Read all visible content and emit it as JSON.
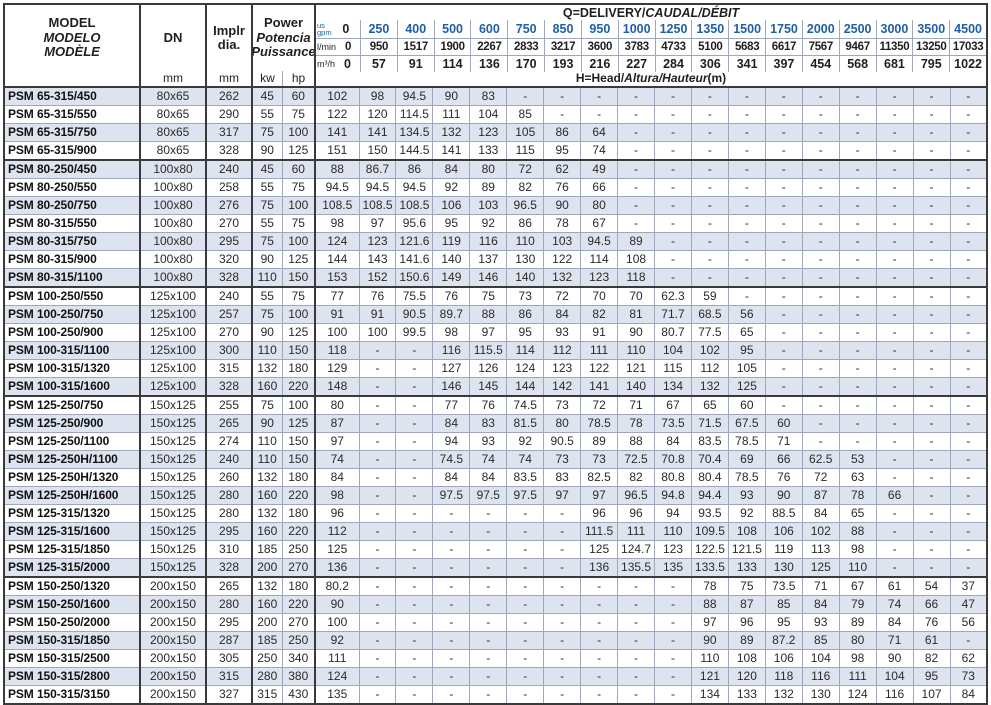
{
  "header": {
    "model_title": [
      "MODEL",
      "MODELO",
      "MODÈLE"
    ],
    "dn_label": "DN",
    "dn_unit": "mm",
    "impeller_label": [
      "Implr",
      "dia."
    ],
    "impeller_unit": "mm",
    "power_title": [
      "Power",
      "Potencia",
      "Puissance"
    ],
    "power_units": [
      "kw",
      "hp"
    ],
    "q_title_parts": [
      "Q=DELIVERY/",
      "CAUDAL/DÉBIT"
    ],
    "h_title_parts": [
      "H=Head/",
      "Altura/Hauteur",
      "(m)"
    ],
    "flow_unit_labels": {
      "gpm": [
        "us",
        "gpm"
      ],
      "lmin": "l/min",
      "m3h": "m³/h"
    },
    "gpm": [
      "0",
      "250",
      "400",
      "500",
      "600",
      "750",
      "850",
      "950",
      "1000",
      "1250",
      "1350",
      "1500",
      "1750",
      "2000",
      "2500",
      "3000",
      "3500",
      "4500"
    ],
    "lmin": [
      "0",
      "950",
      "1517",
      "1900",
      "2267",
      "2833",
      "3217",
      "3600",
      "3783",
      "4733",
      "5100",
      "5683",
      "6617",
      "7567",
      "9467",
      "11350",
      "13250",
      "17033"
    ],
    "m3h": [
      "0",
      "57",
      "91",
      "114",
      "136",
      "170",
      "193",
      "216",
      "227",
      "284",
      "306",
      "341",
      "397",
      "454",
      "568",
      "681",
      "795",
      "1022"
    ]
  },
  "colors": {
    "accent_blue": "#1e5fa8",
    "row_shade": "#dee4ef",
    "grid_light": "#9fa8ba",
    "grid_dark": "#3a3a3a"
  },
  "rows": [
    {
      "model": "PSM 65-315/450",
      "dn": "80x65",
      "dia": "262",
      "kw": "45",
      "hp": "60",
      "group_end": false,
      "head": [
        "102",
        "98",
        "94.5",
        "90",
        "83",
        "-",
        "-",
        "-",
        "-",
        "-",
        "-",
        "-",
        "-",
        "-",
        "-",
        "-",
        "-",
        "-"
      ]
    },
    {
      "model": "PSM 65-315/550",
      "dn": "80x65",
      "dia": "290",
      "kw": "55",
      "hp": "75",
      "group_end": false,
      "head": [
        "122",
        "120",
        "114.5",
        "111",
        "104",
        "85",
        "-",
        "-",
        "-",
        "-",
        "-",
        "-",
        "-",
        "-",
        "-",
        "-",
        "-",
        "-"
      ]
    },
    {
      "model": "PSM 65-315/750",
      "dn": "80x65",
      "dia": "317",
      "kw": "75",
      "hp": "100",
      "group_end": false,
      "head": [
        "141",
        "141",
        "134.5",
        "132",
        "123",
        "105",
        "86",
        "64",
        "-",
        "-",
        "-",
        "-",
        "-",
        "-",
        "-",
        "-",
        "-",
        "-"
      ]
    },
    {
      "model": "PSM 65-315/900",
      "dn": "80x65",
      "dia": "328",
      "kw": "90",
      "hp": "125",
      "group_end": true,
      "head": [
        "151",
        "150",
        "144.5",
        "141",
        "133",
        "115",
        "95",
        "74",
        "-",
        "-",
        "-",
        "-",
        "-",
        "-",
        "-",
        "-",
        "-",
        "-"
      ]
    },
    {
      "model": "PSM 80-250/450",
      "dn": "100x80",
      "dia": "240",
      "kw": "45",
      "hp": "60",
      "group_end": false,
      "head": [
        "88",
        "86.7",
        "86",
        "84",
        "80",
        "72",
        "62",
        "49",
        "-",
        "-",
        "-",
        "-",
        "-",
        "-",
        "-",
        "-",
        "-",
        "-"
      ]
    },
    {
      "model": "PSM 80-250/550",
      "dn": "100x80",
      "dia": "258",
      "kw": "55",
      "hp": "75",
      "group_end": false,
      "head": [
        "94.5",
        "94.5",
        "94.5",
        "92",
        "89",
        "82",
        "76",
        "66",
        "-",
        "-",
        "-",
        "-",
        "-",
        "-",
        "-",
        "-",
        "-",
        "-"
      ]
    },
    {
      "model": "PSM 80-250/750",
      "dn": "100x80",
      "dia": "276",
      "kw": "75",
      "hp": "100",
      "group_end": false,
      "head": [
        "108.5",
        "108.5",
        "108.5",
        "106",
        "103",
        "96.5",
        "90",
        "80",
        "-",
        "-",
        "-",
        "-",
        "-",
        "-",
        "-",
        "-",
        "-",
        "-"
      ]
    },
    {
      "model": "PSM 80-315/550",
      "dn": "100x80",
      "dia": "270",
      "kw": "55",
      "hp": "75",
      "group_end": false,
      "head": [
        "98",
        "97",
        "95.6",
        "95",
        "92",
        "86",
        "78",
        "67",
        "-",
        "-",
        "-",
        "-",
        "-",
        "-",
        "-",
        "-",
        "-",
        "-"
      ]
    },
    {
      "model": "PSM 80-315/750",
      "dn": "100x80",
      "dia": "295",
      "kw": "75",
      "hp": "100",
      "group_end": false,
      "head": [
        "124",
        "123",
        "121.6",
        "119",
        "116",
        "110",
        "103",
        "94.5",
        "89",
        "-",
        "-",
        "-",
        "-",
        "-",
        "-",
        "-",
        "-",
        "-"
      ]
    },
    {
      "model": "PSM 80-315/900",
      "dn": "100x80",
      "dia": "320",
      "kw": "90",
      "hp": "125",
      "group_end": false,
      "head": [
        "144",
        "143",
        "141.6",
        "140",
        "137",
        "130",
        "122",
        "114",
        "108",
        "-",
        "-",
        "-",
        "-",
        "-",
        "-",
        "-",
        "-",
        "-"
      ]
    },
    {
      "model": "PSM 80-315/1100",
      "dn": "100x80",
      "dia": "328",
      "kw": "110",
      "hp": "150",
      "group_end": true,
      "head": [
        "153",
        "152",
        "150.6",
        "149",
        "146",
        "140",
        "132",
        "123",
        "118",
        "-",
        "-",
        "-",
        "-",
        "-",
        "-",
        "-",
        "-",
        "-"
      ]
    },
    {
      "model": "PSM 100-250/550",
      "dn": "125x100",
      "dia": "240",
      "kw": "55",
      "hp": "75",
      "group_end": false,
      "head": [
        "77",
        "76",
        "75.5",
        "76",
        "75",
        "73",
        "72",
        "70",
        "70",
        "62.3",
        "59",
        "-",
        "-",
        "-",
        "-",
        "-",
        "-",
        "-"
      ]
    },
    {
      "model": "PSM 100-250/750",
      "dn": "125x100",
      "dia": "257",
      "kw": "75",
      "hp": "100",
      "group_end": false,
      "head": [
        "91",
        "91",
        "90.5",
        "89.7",
        "88",
        "86",
        "84",
        "82",
        "81",
        "71.7",
        "68.5",
        "56",
        "-",
        "-",
        "-",
        "-",
        "-",
        "-"
      ]
    },
    {
      "model": "PSM 100-250/900",
      "dn": "125x100",
      "dia": "270",
      "kw": "90",
      "hp": "125",
      "group_end": false,
      "head": [
        "100",
        "100",
        "99.5",
        "98",
        "97",
        "95",
        "93",
        "91",
        "90",
        "80.7",
        "77.5",
        "65",
        "-",
        "-",
        "-",
        "-",
        "-",
        "-"
      ]
    },
    {
      "model": "PSM 100-315/1100",
      "dn": "125x100",
      "dia": "300",
      "kw": "110",
      "hp": "150",
      "group_end": false,
      "head": [
        "118",
        "-",
        "-",
        "116",
        "115.5",
        "114",
        "112",
        "111",
        "110",
        "104",
        "102",
        "95",
        "-",
        "-",
        "-",
        "-",
        "-",
        "-"
      ]
    },
    {
      "model": "PSM 100-315/1320",
      "dn": "125x100",
      "dia": "315",
      "kw": "132",
      "hp": "180",
      "group_end": false,
      "head": [
        "129",
        "-",
        "-",
        "127",
        "126",
        "124",
        "123",
        "122",
        "121",
        "115",
        "112",
        "105",
        "-",
        "-",
        "-",
        "-",
        "-",
        "-"
      ]
    },
    {
      "model": "PSM 100-315/1600",
      "dn": "125x100",
      "dia": "328",
      "kw": "160",
      "hp": "220",
      "group_end": true,
      "head": [
        "148",
        "-",
        "-",
        "146",
        "145",
        "144",
        "142",
        "141",
        "140",
        "134",
        "132",
        "125",
        "-",
        "-",
        "-",
        "-",
        "-",
        "-"
      ]
    },
    {
      "model": "PSM 125-250/750",
      "dn": "150x125",
      "dia": "255",
      "kw": "75",
      "hp": "100",
      "group_end": false,
      "head": [
        "80",
        "-",
        "-",
        "77",
        "76",
        "74.5",
        "73",
        "72",
        "71",
        "67",
        "65",
        "60",
        "-",
        "-",
        "-",
        "-",
        "-",
        "-"
      ]
    },
    {
      "model": "PSM 125-250/900",
      "dn": "150x125",
      "dia": "265",
      "kw": "90",
      "hp": "125",
      "group_end": false,
      "head": [
        "87",
        "-",
        "-",
        "84",
        "83",
        "81.5",
        "80",
        "78.5",
        "78",
        "73.5",
        "71.5",
        "67.5",
        "60",
        "-",
        "-",
        "-",
        "-",
        "-"
      ]
    },
    {
      "model": "PSM 125-250/1100",
      "dn": "150x125",
      "dia": "274",
      "kw": "110",
      "hp": "150",
      "group_end": false,
      "head": [
        "97",
        "-",
        "-",
        "94",
        "93",
        "92",
        "90.5",
        "89",
        "88",
        "84",
        "83.5",
        "78.5",
        "71",
        "-",
        "-",
        "-",
        "-",
        "-"
      ]
    },
    {
      "model": "PSM 125-250H/1100",
      "dn": "150x125",
      "dia": "240",
      "kw": "110",
      "hp": "150",
      "group_end": false,
      "head": [
        "74",
        "-",
        "-",
        "74.5",
        "74",
        "74",
        "73",
        "73",
        "72.5",
        "70.8",
        "70.4",
        "69",
        "66",
        "62.5",
        "53",
        "-",
        "-",
        "-"
      ]
    },
    {
      "model": "PSM 125-250H/1320",
      "dn": "150x125",
      "dia": "260",
      "kw": "132",
      "hp": "180",
      "group_end": false,
      "head": [
        "84",
        "-",
        "-",
        "84",
        "84",
        "83.5",
        "83",
        "82.5",
        "82",
        "80.8",
        "80.4",
        "78.5",
        "76",
        "72",
        "63",
        "-",
        "-",
        "-"
      ]
    },
    {
      "model": "PSM 125-250H/1600",
      "dn": "150x125",
      "dia": "280",
      "kw": "160",
      "hp": "220",
      "group_end": false,
      "head": [
        "98",
        "-",
        "-",
        "97.5",
        "97.5",
        "97.5",
        "97",
        "97",
        "96.5",
        "94.8",
        "94.4",
        "93",
        "90",
        "87",
        "78",
        "66",
        "-",
        "-"
      ]
    },
    {
      "model": "PSM 125-315/1320",
      "dn": "150x125",
      "dia": "280",
      "kw": "132",
      "hp": "180",
      "group_end": false,
      "head": [
        "96",
        "-",
        "-",
        "-",
        "-",
        "-",
        "-",
        "96",
        "96",
        "94",
        "93.5",
        "92",
        "88.5",
        "84",
        "65",
        "-",
        "-",
        "-"
      ]
    },
    {
      "model": "PSM 125-315/1600",
      "dn": "150x125",
      "dia": "295",
      "kw": "160",
      "hp": "220",
      "group_end": false,
      "head": [
        "112",
        "-",
        "-",
        "-",
        "-",
        "-",
        "-",
        "111.5",
        "111",
        "110",
        "109.5",
        "108",
        "106",
        "102",
        "88",
        "-",
        "-",
        "-"
      ]
    },
    {
      "model": "PSM 125-315/1850",
      "dn": "150x125",
      "dia": "310",
      "kw": "185",
      "hp": "250",
      "group_end": false,
      "head": [
        "125",
        "-",
        "-",
        "-",
        "-",
        "-",
        "-",
        "125",
        "124.7",
        "123",
        "122.5",
        "121.5",
        "119",
        "113",
        "98",
        "-",
        "-",
        "-"
      ]
    },
    {
      "model": "PSM 125-315/2000",
      "dn": "150x125",
      "dia": "328",
      "kw": "200",
      "hp": "270",
      "group_end": true,
      "head": [
        "136",
        "-",
        "-",
        "-",
        "-",
        "-",
        "-",
        "136",
        "135.5",
        "135",
        "133.5",
        "133",
        "130",
        "125",
        "110",
        "-",
        "-",
        "-"
      ]
    },
    {
      "model": "PSM 150-250/1320",
      "dn": "200x150",
      "dia": "265",
      "kw": "132",
      "hp": "180",
      "group_end": false,
      "head": [
        "80.2",
        "-",
        "-",
        "-",
        "-",
        "-",
        "-",
        "-",
        "-",
        "-",
        "78",
        "75",
        "73.5",
        "71",
        "67",
        "61",
        "54",
        "37"
      ]
    },
    {
      "model": "PSM 150-250/1600",
      "dn": "200x150",
      "dia": "280",
      "kw": "160",
      "hp": "220",
      "group_end": false,
      "head": [
        "90",
        "-",
        "-",
        "-",
        "-",
        "-",
        "-",
        "-",
        "-",
        "-",
        "88",
        "87",
        "85",
        "84",
        "79",
        "74",
        "66",
        "47"
      ]
    },
    {
      "model": "PSM 150-250/2000",
      "dn": "200x150",
      "dia": "295",
      "kw": "200",
      "hp": "270",
      "group_end": false,
      "head": [
        "100",
        "-",
        "-",
        "-",
        "-",
        "-",
        "-",
        "-",
        "-",
        "-",
        "97",
        "96",
        "95",
        "93",
        "89",
        "84",
        "76",
        "56"
      ]
    },
    {
      "model": "PSM 150-315/1850",
      "dn": "200x150",
      "dia": "287",
      "kw": "185",
      "hp": "250",
      "group_end": false,
      "head": [
        "92",
        "-",
        "-",
        "-",
        "-",
        "-",
        "-",
        "-",
        "-",
        "-",
        "90",
        "89",
        "87.2",
        "85",
        "80",
        "71",
        "61",
        "-"
      ]
    },
    {
      "model": "PSM 150-315/2500",
      "dn": "200x150",
      "dia": "305",
      "kw": "250",
      "hp": "340",
      "group_end": false,
      "head": [
        "111",
        "-",
        "-",
        "-",
        "-",
        "-",
        "-",
        "-",
        "-",
        "-",
        "110",
        "108",
        "106",
        "104",
        "98",
        "90",
        "82",
        "62"
      ]
    },
    {
      "model": "PSM 150-315/2800",
      "dn": "200x150",
      "dia": "315",
      "kw": "280",
      "hp": "380",
      "group_end": false,
      "head": [
        "124",
        "-",
        "-",
        "-",
        "-",
        "-",
        "-",
        "-",
        "-",
        "-",
        "121",
        "120",
        "118",
        "116",
        "111",
        "104",
        "95",
        "73"
      ]
    },
    {
      "model": "PSM 150-315/3150",
      "dn": "200x150",
      "dia": "327",
      "kw": "315",
      "hp": "430",
      "group_end": false,
      "head": [
        "135",
        "-",
        "-",
        "-",
        "-",
        "-",
        "-",
        "-",
        "-",
        "-",
        "134",
        "133",
        "132",
        "130",
        "124",
        "116",
        "107",
        "84"
      ]
    }
  ]
}
